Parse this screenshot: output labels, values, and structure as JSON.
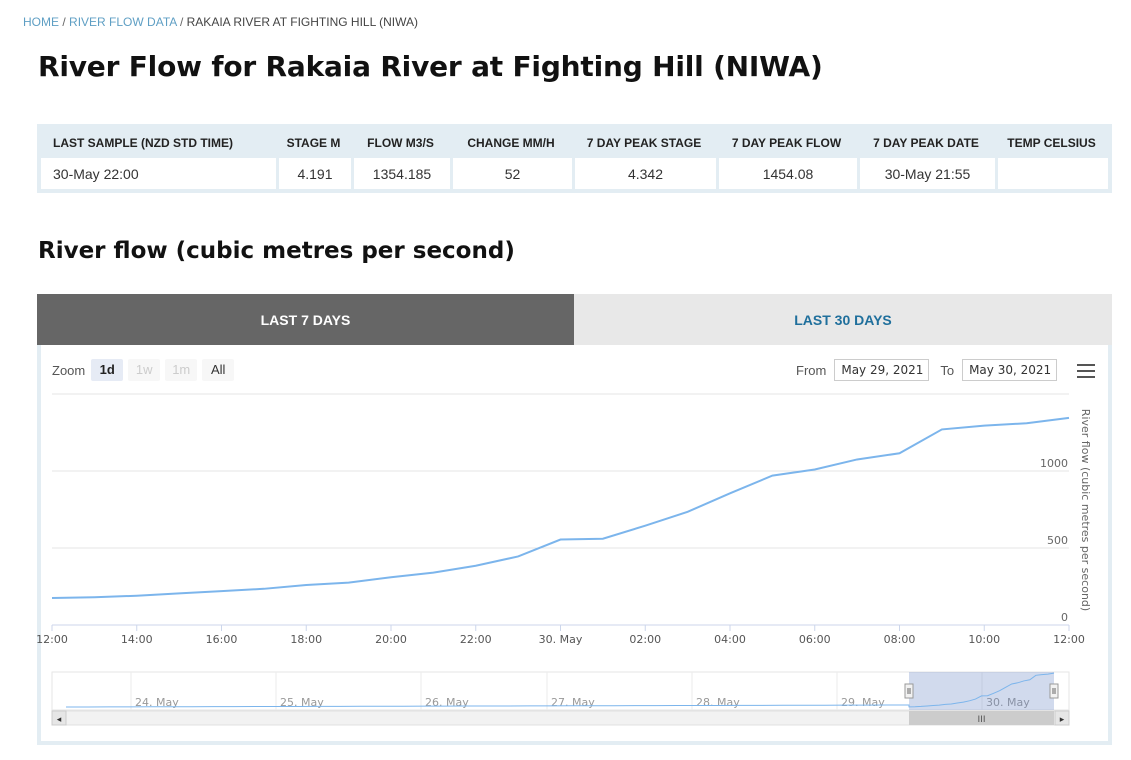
{
  "breadcrumb": {
    "home": "HOME",
    "section": "RIVER FLOW DATA",
    "current": "RAKAIA RIVER AT FIGHTING HILL (NIWA)",
    "sep": "/"
  },
  "page_title": "River Flow for Rakaia River at Fighting Hill (NIWA)",
  "stats": {
    "headers": [
      "LAST SAMPLE (NZD STD TIME)",
      "STAGE M",
      "FLOW M3/S",
      "CHANGE MM/H",
      "7 DAY PEAK STAGE",
      "7 DAY PEAK FLOW",
      "7 DAY PEAK DATE",
      "TEMP CELSIUS"
    ],
    "values": [
      "30-May 22:00",
      "4.191",
      "1354.185",
      "52",
      "4.342",
      "1454.08",
      "30-May 21:55",
      ""
    ]
  },
  "section_title": "River flow (cubic metres per second)",
  "tabs": {
    "active": "LAST 7 DAYS",
    "inactive": "LAST 30 DAYS"
  },
  "zoom": {
    "label": "Zoom",
    "buttons": [
      "1d",
      "1w",
      "1m",
      "All"
    ]
  },
  "range": {
    "from_label": "From",
    "from_value": "May 29, 2021",
    "to_label": "To",
    "to_value": "May 30, 2021"
  },
  "colors": {
    "line": "#7cb5ec",
    "grid": "#e6e6e6",
    "navigator_mask": "rgba(102,133,194,0.3)"
  },
  "icons": {
    "menu": "hamburger-menu-icon"
  },
  "chart_data": {
    "type": "line",
    "yaxis": {
      "title": "River flow (cubic metres per second)",
      "ticks": [
        0,
        500,
        1000
      ],
      "position": "right",
      "ylim": [
        0,
        1500
      ]
    },
    "xaxis": {
      "ticks": [
        "12:00",
        "14:00",
        "16:00",
        "18:00",
        "20:00",
        "22:00",
        "30. May",
        "02:00",
        "04:00",
        "06:00",
        "08:00",
        "10:00",
        "12:00"
      ]
    },
    "grid": true,
    "series": [
      {
        "x_hours": [
          0,
          1,
          2,
          3,
          4,
          5,
          6,
          7,
          8,
          9,
          10,
          11,
          12,
          13,
          14,
          15,
          16,
          17,
          18,
          19,
          20,
          21,
          22,
          23,
          24
        ],
        "values": [
          175,
          180,
          190,
          205,
          220,
          235,
          260,
          275,
          310,
          340,
          385,
          445,
          555,
          560,
          645,
          735,
          855,
          970,
          1010,
          1075,
          1115,
          1270,
          1295,
          1310,
          1345
        ]
      }
    ],
    "navigator": {
      "labels": [
        "24. May",
        "25. May",
        "26. May",
        "27. May",
        "28. May",
        "29. May",
        "30. May"
      ],
      "scrollbar_grip": "III",
      "arrow_left": "◂",
      "arrow_right": "▸"
    }
  }
}
